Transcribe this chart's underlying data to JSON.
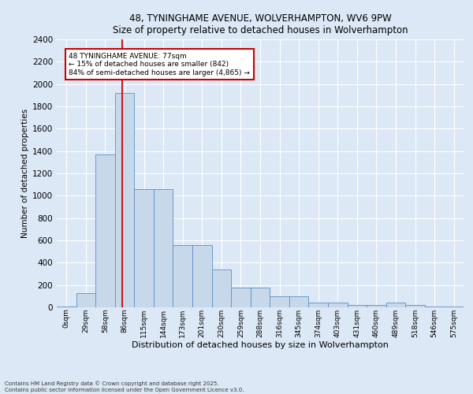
{
  "title1": "48, TYNINGHAME AVENUE, WOLVERHAMPTON, WV6 9PW",
  "title2": "Size of property relative to detached houses in Wolverhampton",
  "xlabel": "Distribution of detached houses by size in Wolverhampton",
  "ylabel": "Number of detached properties",
  "footnote1": "Contains HM Land Registry data © Crown copyright and database right 2025.",
  "footnote2": "Contains public sector information licensed under the Open Government Licence v3.0.",
  "bar_labels": [
    "0sqm",
    "29sqm",
    "58sqm",
    "86sqm",
    "115sqm",
    "144sqm",
    "173sqm",
    "201sqm",
    "230sqm",
    "259sqm",
    "288sqm",
    "316sqm",
    "345sqm",
    "374sqm",
    "403sqm",
    "431sqm",
    "460sqm",
    "489sqm",
    "518sqm",
    "546sqm",
    "575sqm"
  ],
  "bar_values": [
    5,
    130,
    1370,
    1920,
    1060,
    1060,
    560,
    560,
    340,
    180,
    180,
    100,
    100,
    40,
    40,
    20,
    20,
    40,
    20,
    5,
    5
  ],
  "bar_color": "#c8d8eb",
  "bar_edge_color": "#5b8fc7",
  "ylim": [
    0,
    2400
  ],
  "yticks": [
    0,
    200,
    400,
    600,
    800,
    1000,
    1200,
    1400,
    1600,
    1800,
    2000,
    2200,
    2400
  ],
  "vline_x": 2.88,
  "vline_color": "#cc0000",
  "annotation_title": "48 TYNINGHAME AVENUE: 77sqm",
  "annotation_line1": "← 15% of detached houses are smaller (842)",
  "annotation_line2": "84% of semi-detached houses are larger (4,865) →",
  "annotation_box_color": "#cc0000",
  "bg_color": "#dce8f5",
  "plot_bg_color": "#dce8f5"
}
